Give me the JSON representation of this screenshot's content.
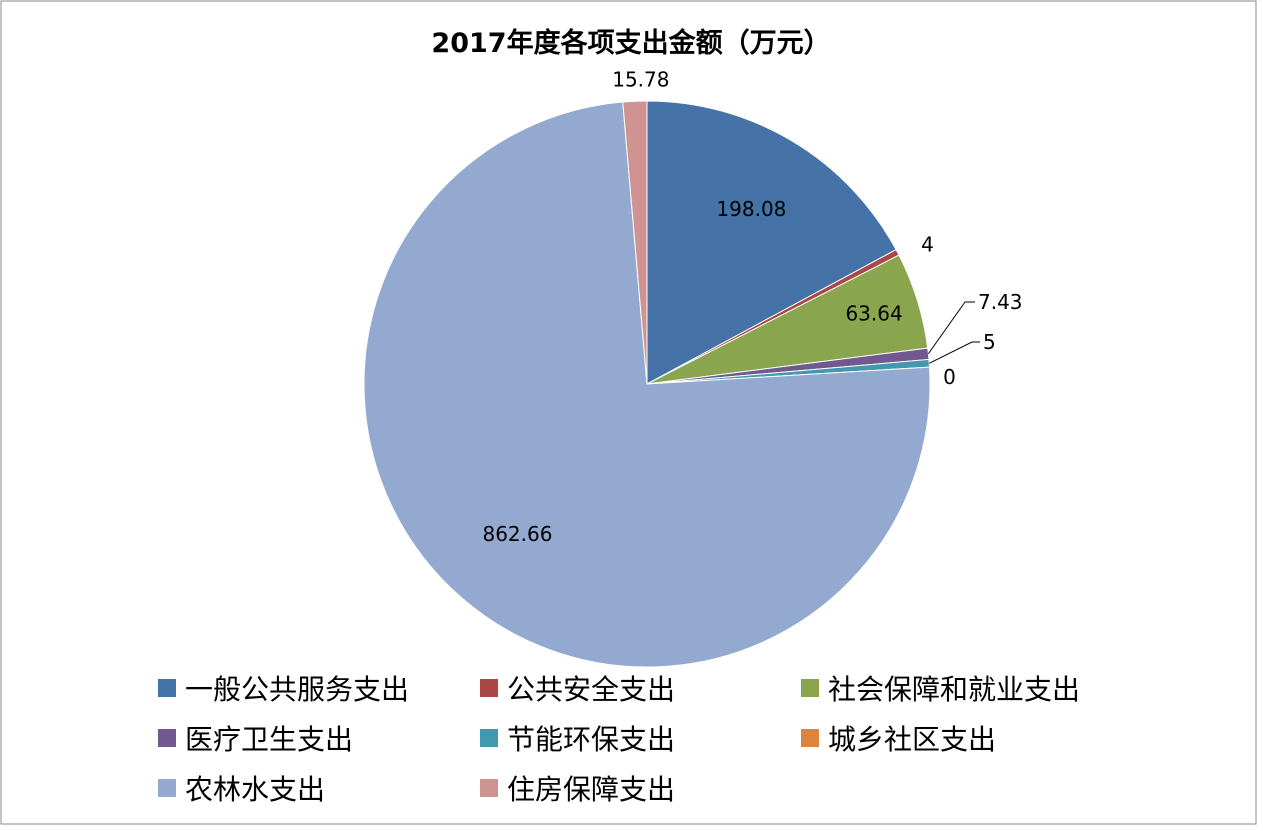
{
  "chart_data": {
    "type": "pie",
    "title": "2017年度各项支出金额（万元）",
    "unit": "万元",
    "slices": [
      {
        "label": "一般公共服务支出",
        "value": 198.08,
        "color": "#4572A7",
        "value_label": "198.08"
      },
      {
        "label": "公共安全支出",
        "value": 4,
        "color": "#AA4643",
        "value_label": "4"
      },
      {
        "label": "社会保障和就业支出",
        "value": 63.64,
        "color": "#89A54E",
        "value_label": "63.64"
      },
      {
        "label": "医疗卫生支出",
        "value": 7.43,
        "color": "#71588F",
        "value_label": "7.43"
      },
      {
        "label": "节能环保支出",
        "value": 5,
        "color": "#4198AF",
        "value_label": "5"
      },
      {
        "label": "城乡社区支出",
        "value": 0,
        "color": "#DB843D",
        "value_label": "0"
      },
      {
        "label": "农林水支出",
        "value": 862.66,
        "color": "#93A9CF",
        "value_label": "862.66"
      },
      {
        "label": "住房保障支出",
        "value": 15.78,
        "color": "#D19392",
        "value_label": "15.78"
      }
    ],
    "legend_position": "bottom"
  }
}
